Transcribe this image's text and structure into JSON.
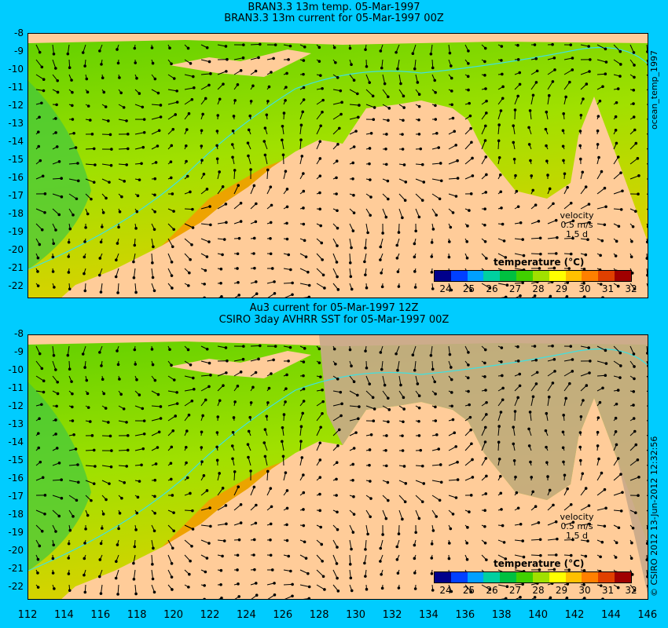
{
  "top": {
    "title_line1": "BRAN3.3 13m temp. 05-Mar-1997",
    "title_line2": "BRAN3.3 13m current for 05-Mar-1997 00Z",
    "side_label": "ocean_temp_1997"
  },
  "bottom": {
    "title_line1": "Au3 current for 05-Mar-1997 12Z",
    "title_line2": "CSIRO 3day AVHRR SST for 05-Mar-1997 00Z",
    "side_label": "© CSIRO 2012  13-Jun-2012 12:32:56"
  },
  "legend": {
    "title": "temperature (°C)",
    "ticks": [
      "24",
      "25",
      "26",
      "27",
      "28",
      "29",
      "30",
      "31",
      "32"
    ],
    "colors": [
      "#00008b",
      "#0040ff",
      "#00a0ff",
      "#00d0a0",
      "#00c040",
      "#40d000",
      "#a0e000",
      "#ffff00",
      "#ffc000",
      "#ff8000",
      "#e04000",
      "#a00000"
    ],
    "velocity_label": "velocity",
    "velocity_value": "0.5 m/s",
    "velocity_time": "1.5 d"
  },
  "lat_labels": [
    "-8",
    "-9",
    "-10",
    "-11",
    "-12",
    "-13",
    "-14",
    "-15",
    "-16",
    "-17",
    "-18",
    "-19",
    "-20",
    "-21",
    "-22"
  ],
  "lon_labels": [
    "112",
    "114",
    "116",
    "118",
    "120",
    "122",
    "124",
    "126",
    "128",
    "130",
    "132",
    "134",
    "136",
    "138",
    "140",
    "142",
    "144",
    "146"
  ],
  "colors": {
    "background": "#00ccff",
    "land": "#ffcc99",
    "no_data": "#c8a88a"
  }
}
